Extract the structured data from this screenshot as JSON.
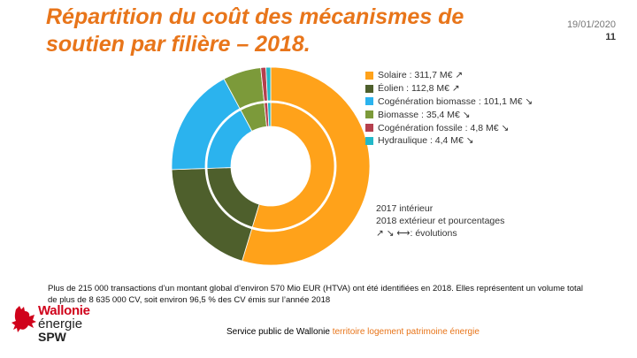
{
  "slide": {
    "title": "Répartition du coût des mécanismes de soutien par filière – 2018.",
    "date": "19/01/2020",
    "page_number": "11",
    "body_text": "Plus de 215 000 transactions d’un montant global d’environ 570 Mio EUR (HTVA) ont été identifiées en 2018. Elles représentent un volume total de plus de 8 635 000 CV, soit environ 96,5 % des CV émis sur l’année 2018",
    "footer_org": "Service public de Wallonie",
    "footer_tags": "territoire logement patrimoine énergie"
  },
  "logo": {
    "line1": "Wallonie",
    "line2": "énergie",
    "line3": "SPW"
  },
  "chart_data": {
    "type": "pie",
    "style": "double-donut",
    "categories": [
      "Solaire",
      "Éolien",
      "Cogénération biomasse",
      "Biomasse",
      "Cogénération fossile",
      "Hydraulique"
    ],
    "legend": [
      "Solaire : 311,7 M€ ↗",
      "Éolien : 112,8 M€ ↗",
      "Cogénération biomasse : 101,1 M€ ↘",
      "Biomasse : 35,4 M€ ↘",
      "Cogénération fossile : 4,8 M€ ↘",
      "Hydraulique : 4,4 M€ ↘"
    ],
    "colors": [
      "#FFA21A",
      "#4E5F2C",
      "#2BB3EE",
      "#7C9A3A",
      "#B5404E",
      "#22B8C8"
    ],
    "series": [
      {
        "values": [
          311.7,
          112.8,
          101.1,
          35.4,
          4.8,
          4.4
        ]
      },
      {
        "values": [
          311.7,
          112.8,
          101.1,
          35.4,
          4.8,
          4.4
        ]
      }
    ],
    "notes": [
      "2017 intérieur",
      "2018 extérieur et pourcentages",
      "↗ ↘ ⟷: évolutions"
    ],
    "legend_position": "right"
  }
}
